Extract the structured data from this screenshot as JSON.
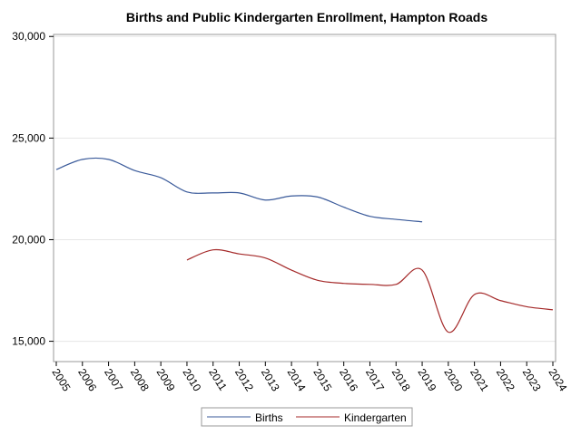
{
  "chart_data": {
    "type": "line",
    "title": "Births and Public Kindergarten Enrollment, Hampton Roads",
    "xlabel": "",
    "ylabel": "",
    "x": [
      2005,
      2006,
      2007,
      2008,
      2009,
      2010,
      2011,
      2012,
      2013,
      2014,
      2015,
      2016,
      2017,
      2018,
      2019,
      2020,
      2021,
      2022,
      2023,
      2024
    ],
    "x_tick_labels": [
      "2005",
      "2006",
      "2007",
      "2008",
      "2009",
      "2010",
      "2011",
      "2012",
      "2013",
      "2014",
      "2015",
      "2016",
      "2017",
      "2018",
      "2019",
      "2020",
      "2021",
      "2022",
      "2023",
      "2024"
    ],
    "y_ticks": [
      15000,
      20000,
      25000,
      30000
    ],
    "y_tick_labels": [
      "15,000",
      "20,000",
      "25,000",
      "30,000"
    ],
    "xlim": [
      2005,
      2024
    ],
    "ylim": [
      14000,
      30100
    ],
    "grid": "horizontal",
    "legend_position": "bottom",
    "series": [
      {
        "name": "Births",
        "color": "#3a5a9a",
        "values": [
          23450,
          23950,
          23950,
          23400,
          23050,
          22350,
          22300,
          22300,
          21950,
          22150,
          22100,
          21600,
          21150,
          21000,
          20880,
          null,
          null,
          null,
          null,
          null
        ]
      },
      {
        "name": "Kindergarten",
        "color": "#a52a2a",
        "values": [
          null,
          null,
          null,
          null,
          null,
          19000,
          19500,
          19300,
          19100,
          18500,
          18000,
          17850,
          17800,
          17800,
          18500,
          15450,
          17300,
          17000,
          16700,
          16550
        ]
      }
    ]
  }
}
